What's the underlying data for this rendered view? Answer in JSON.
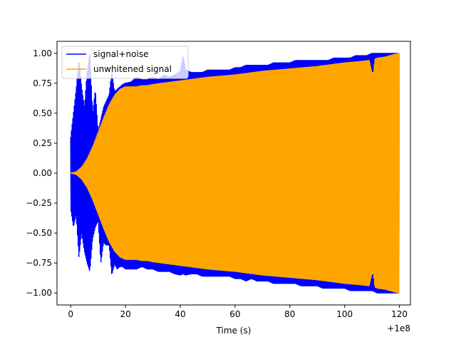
{
  "chart_data": {
    "type": "line",
    "title": "",
    "xlabel": "Time (s)",
    "ylabel": "",
    "x_offset_label": "+1e8",
    "xlim": [
      -5,
      124
    ],
    "ylim": [
      -1.1,
      1.1
    ],
    "x_ticks": [
      0,
      20,
      40,
      60,
      80,
      100,
      120
    ],
    "x_tick_labels": [
      "0",
      "20",
      "40",
      "60",
      "80",
      "100",
      "120"
    ],
    "y_ticks": [
      1.0,
      0.75,
      0.5,
      0.25,
      0.0,
      -0.25,
      -0.5,
      -0.75,
      -1.0
    ],
    "y_tick_labels": [
      "1.00",
      "0.75",
      "0.50",
      "0.25",
      "0.00",
      "−0.25",
      "−0.50",
      "−0.75",
      "−1.00"
    ],
    "grid": false,
    "legend_position": "upper-left",
    "series": [
      {
        "name": "signal+noise",
        "color": "#0000ff",
        "x_range": [
          0,
          120
        ],
        "upper_envelope": {
          "x": [
            0,
            1,
            2,
            3,
            4,
            5,
            6,
            7,
            8,
            9,
            10,
            11,
            12,
            13,
            14,
            15,
            16,
            17,
            18,
            19,
            20,
            22,
            24,
            26,
            28,
            30,
            32,
            34,
            36,
            38,
            40,
            41,
            42,
            44,
            46,
            48,
            50,
            52,
            54,
            56,
            58,
            60,
            62,
            64,
            66,
            68,
            70,
            72,
            74,
            76,
            78,
            80,
            82,
            84,
            86,
            88,
            90,
            92,
            94,
            96,
            98,
            100,
            102,
            104,
            106,
            108,
            110,
            112,
            114,
            116,
            118,
            120
          ],
          "y": [
            0.3,
            0.5,
            0.7,
            0.95,
            0.72,
            0.55,
            0.85,
            1.0,
            0.5,
            0.7,
            0.35,
            0.45,
            0.55,
            0.6,
            0.65,
            0.85,
            0.68,
            0.7,
            0.72,
            0.74,
            0.75,
            0.76,
            0.8,
            0.78,
            0.78,
            0.8,
            0.78,
            0.82,
            0.8,
            0.82,
            0.85,
            0.98,
            0.86,
            0.84,
            0.84,
            0.84,
            0.86,
            0.86,
            0.86,
            0.86,
            0.86,
            0.88,
            0.88,
            0.9,
            0.9,
            0.9,
            0.9,
            0.9,
            0.92,
            0.92,
            0.92,
            0.92,
            0.94,
            0.94,
            0.94,
            0.94,
            0.94,
            0.94,
            0.94,
            0.96,
            0.96,
            0.96,
            0.96,
            0.98,
            0.98,
            0.98,
            1.0,
            1.0,
            1.0,
            1.0,
            1.0,
            1.0
          ]
        },
        "lower_envelope": {
          "x": [
            0,
            1,
            2,
            3,
            4,
            5,
            6,
            7,
            8,
            9,
            10,
            11,
            12,
            13,
            14,
            15,
            16,
            17,
            18,
            19,
            20,
            22,
            24,
            26,
            28,
            30,
            32,
            34,
            36,
            38,
            40,
            41,
            42,
            44,
            46,
            48,
            50,
            52,
            54,
            56,
            58,
            60,
            62,
            64,
            66,
            68,
            70,
            72,
            74,
            76,
            78,
            80,
            82,
            84,
            86,
            88,
            90,
            92,
            94,
            96,
            98,
            100,
            102,
            104,
            106,
            108,
            110,
            112,
            114,
            116,
            118,
            120
          ],
          "y": [
            -0.3,
            -0.45,
            -0.35,
            -0.7,
            -0.5,
            -0.65,
            -0.75,
            -0.82,
            -0.55,
            -0.45,
            -0.4,
            -0.75,
            -0.58,
            -0.6,
            -0.6,
            -0.85,
            -0.76,
            -0.8,
            -0.78,
            -0.78,
            -0.8,
            -0.8,
            -0.8,
            -0.78,
            -0.8,
            -0.8,
            -0.82,
            -0.82,
            -0.82,
            -0.84,
            -0.85,
            -0.84,
            -0.85,
            -0.84,
            -0.84,
            -0.86,
            -0.86,
            -0.86,
            -0.86,
            -0.86,
            -0.86,
            -0.88,
            -0.88,
            -0.9,
            -0.88,
            -0.9,
            -0.9,
            -0.9,
            -0.92,
            -0.92,
            -0.92,
            -0.92,
            -0.92,
            -0.94,
            -0.94,
            -0.94,
            -0.94,
            -0.96,
            -0.96,
            -0.96,
            -0.96,
            -0.96,
            -0.98,
            -0.98,
            -0.98,
            -0.98,
            -0.98,
            -1.0,
            -1.0,
            -1.0,
            -1.0,
            -1.0
          ]
        }
      },
      {
        "name": "unwhitened signal",
        "color": "#ffa500",
        "x_range": [
          0,
          120
        ],
        "upper_envelope": {
          "x": [
            0,
            2,
            4,
            6,
            8,
            10,
            12,
            14,
            16,
            18,
            20,
            22,
            24,
            26,
            28,
            30,
            40,
            50,
            60,
            70,
            80,
            90,
            100,
            105,
            109,
            110,
            110.5,
            111,
            112,
            115,
            118,
            120
          ],
          "y": [
            0.0,
            0.01,
            0.05,
            0.12,
            0.22,
            0.34,
            0.46,
            0.57,
            0.65,
            0.7,
            0.72,
            0.72,
            0.72,
            0.73,
            0.73,
            0.74,
            0.77,
            0.8,
            0.82,
            0.85,
            0.87,
            0.89,
            0.92,
            0.93,
            0.94,
            0.84,
            0.84,
            0.95,
            0.96,
            0.97,
            0.99,
            1.0
          ]
        },
        "lower_envelope": {
          "x": [
            0,
            2,
            4,
            6,
            8,
            10,
            12,
            14,
            16,
            18,
            20,
            22,
            24,
            26,
            28,
            30,
            40,
            50,
            60,
            70,
            80,
            90,
            100,
            105,
            109,
            110,
            110.5,
            111,
            112,
            115,
            118,
            120
          ],
          "y": [
            0.0,
            -0.01,
            -0.05,
            -0.12,
            -0.22,
            -0.34,
            -0.46,
            -0.57,
            -0.65,
            -0.7,
            -0.72,
            -0.72,
            -0.72,
            -0.73,
            -0.73,
            -0.74,
            -0.77,
            -0.8,
            -0.82,
            -0.85,
            -0.87,
            -0.89,
            -0.92,
            -0.93,
            -0.94,
            -0.84,
            -0.84,
            -0.95,
            -0.96,
            -0.97,
            -0.99,
            -1.0
          ]
        }
      }
    ]
  }
}
